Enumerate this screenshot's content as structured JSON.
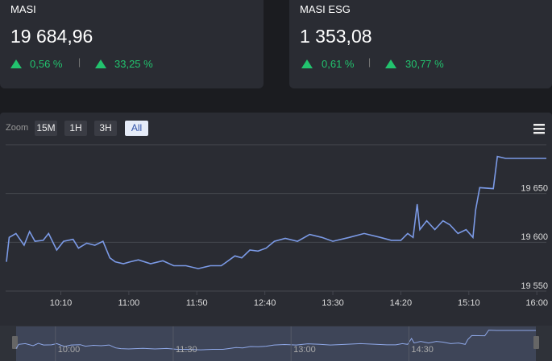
{
  "cards": [
    {
      "name": "MASI",
      "value": "19 684,96",
      "day_change": "0,56 %",
      "ytd_change": "33,25 %"
    },
    {
      "name": "MASI ESG",
      "value": "1 353,08",
      "day_change": "0,61 %",
      "ytd_change": "30,77 %"
    }
  ],
  "zoom": {
    "label": "Zoom",
    "buttons": [
      "15M",
      "1H",
      "3H",
      "All"
    ],
    "active": 3
  },
  "chart_data": {
    "type": "line",
    "color": "#7b9ae6",
    "x": [
      "09:30",
      "09:32",
      "09:37",
      "09:43",
      "09:47",
      "09:51",
      "09:57",
      "10:01",
      "10:07",
      "10:12",
      "10:19",
      "10:23",
      "10:29",
      "10:35",
      "10:41",
      "10:46",
      "10:50",
      "10:56",
      "11:01",
      "11:07",
      "11:16",
      "11:25",
      "11:33",
      "11:42",
      "11:51",
      "12:00",
      "12:08",
      "12:12",
      "12:18",
      "12:23",
      "12:29",
      "12:35",
      "12:41",
      "12:47",
      "12:55",
      "13:04",
      "13:13",
      "13:22",
      "13:30",
      "13:42",
      "13:53",
      "14:05",
      "14:13",
      "14:20",
      "14:25",
      "14:29",
      "14:32",
      "14:34",
      "14:39",
      "14:45",
      "14:51",
      "14:56",
      "15:02",
      "15:08",
      "15:13",
      "15:15",
      "15:18",
      "15:28",
      "15:31",
      "15:37",
      "16:07"
    ],
    "values": [
      19580,
      19605,
      19609,
      19597,
      19611,
      19601,
      19602,
      19609,
      19592,
      19601,
      19603,
      19594,
      19599,
      19597,
      19601,
      19584,
      19580,
      19578,
      19580,
      19582,
      19578,
      19581,
      19576,
      19576,
      19573,
      19576,
      19576,
      19580,
      19586,
      19584,
      19592,
      19591,
      19594,
      19601,
      19604,
      19601,
      19608,
      19605,
      19601,
      19605,
      19609,
      19605,
      19602,
      19602,
      19609,
      19605,
      19639,
      19613,
      19622,
      19613,
      19622,
      19618,
      19609,
      19613,
      19605,
      19633,
      19656,
      19655,
      19688,
      19686,
      19686
    ],
    "xlim": [
      "09:30",
      "16:07"
    ],
    "xticks": [
      "10:10",
      "11:00",
      "11:50",
      "12:40",
      "13:30",
      "14:20",
      "15:10",
      "16:00"
    ],
    "ylim": [
      19550,
      19700
    ],
    "yticks": [
      {
        "value": 19550,
        "label": "19 550"
      },
      {
        "value": 19600,
        "label": "19 600"
      },
      {
        "value": 19650,
        "label": "19 650"
      }
    ],
    "grid": true,
    "navigator_xticks": [
      "10:00",
      "11:30",
      "13:00",
      "14:30"
    ]
  }
}
